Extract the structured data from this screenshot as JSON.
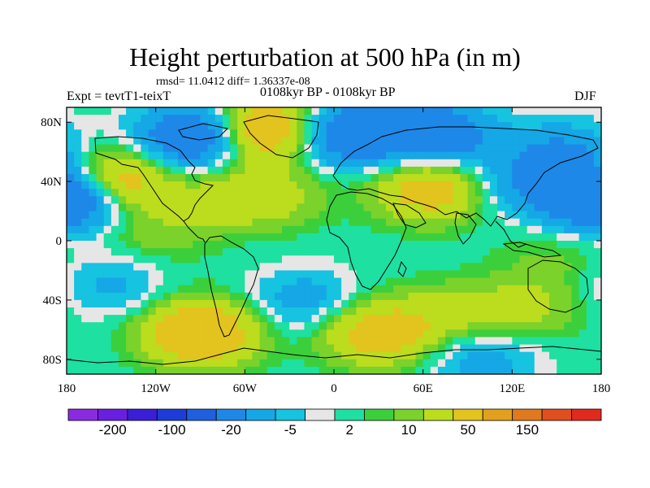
{
  "figure": {
    "title": "Height perturbation at 500 hPa (in m)",
    "stats": "rmsd= 11.0412 diff= 1.36337e-08",
    "experiment": "Expt = tevtT1-teixT",
    "period": "0108kyr BP - 0108kyr BP",
    "season": "DJF"
  },
  "chart_data": {
    "type": "heatmap",
    "title": "Height perturbation at 500 hPa (in m)",
    "xlabel": "",
    "ylabel": "",
    "x_range": [
      -180,
      180
    ],
    "y_range": [
      -90,
      90
    ],
    "x_ticks": [
      -180,
      -120,
      -60,
      0,
      60,
      120,
      180
    ],
    "x_tick_labels": [
      "180",
      "120W",
      "60W",
      "0",
      "60E",
      "120E",
      "180"
    ],
    "y_ticks": [
      80,
      40,
      0,
      -40,
      -80
    ],
    "y_tick_labels": [
      "80N",
      "40N",
      "0",
      "40S",
      "80S"
    ],
    "colorbar": {
      "colors": [
        "#8a2be2",
        "#6a1fe0",
        "#3a1fd6",
        "#1e3cd9",
        "#1f5fe0",
        "#1e88e8",
        "#15a7e6",
        "#16c3e0",
        "#e6e6e6",
        "#1ee0a0",
        "#3ccf3c",
        "#7ad22a",
        "#bcdc1e",
        "#e3c31e",
        "#e3a01e",
        "#e07a1e",
        "#e0501e",
        "#e02a1e"
      ],
      "labels": [
        "-200",
        "-100",
        "-20",
        "-5",
        "2",
        "10",
        "50",
        "150"
      ]
    },
    "anomaly_blobs": [
      {
        "lon": -150,
        "lat": 40,
        "value": 40
      },
      {
        "lon": -172,
        "lat": 30,
        "value": -30
      },
      {
        "lon": 172,
        "lat": 30,
        "value": -30
      },
      {
        "lon": -95,
        "lat": 70,
        "value": -40
      },
      {
        "lon": -45,
        "lat": 75,
        "value": 40
      },
      {
        "lon": 10,
        "lat": 72,
        "value": -40
      },
      {
        "lon": 70,
        "lat": 72,
        "value": -35
      },
      {
        "lon": 155,
        "lat": 60,
        "value": -20
      },
      {
        "lon": -75,
        "lat": 30,
        "value": 12
      },
      {
        "lon": -40,
        "lat": 30,
        "value": 12
      },
      {
        "lon": 65,
        "lat": 35,
        "value": 30
      },
      {
        "lon": 125,
        "lat": 40,
        "value": -15
      },
      {
        "lon": -120,
        "lat": 5,
        "value": 8
      },
      {
        "lon": 130,
        "lat": -45,
        "value": 12
      },
      {
        "lon": 150,
        "lat": -10,
        "value": 6
      },
      {
        "lon": -150,
        "lat": -30,
        "value": -12
      },
      {
        "lon": -90,
        "lat": -62,
        "value": 40
      },
      {
        "lon": -20,
        "lat": -40,
        "value": -15
      },
      {
        "lon": 30,
        "lat": -62,
        "value": 30
      },
      {
        "lon": 80,
        "lat": -50,
        "value": 12
      },
      {
        "lon": 100,
        "lat": -80,
        "value": -15
      }
    ]
  }
}
